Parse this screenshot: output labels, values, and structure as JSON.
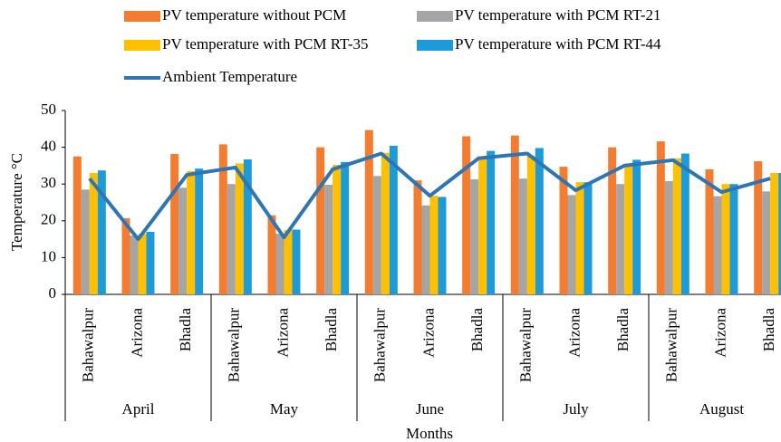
{
  "chart_data": {
    "type": "bar",
    "xlabel": "Months",
    "ylabel": "Temperature °C",
    "groups": [
      "April",
      "May",
      "June",
      "July",
      "August"
    ],
    "categories": [
      "Bahawalpur",
      "Arizona",
      "Bhadla",
      "Bahawalpur",
      "Arizona",
      "Bhadla",
      "Bahawalpur",
      "Arizona",
      "Bhadla",
      "Bahawalpur",
      "Arizona",
      "Bhadla",
      "Bahawalpur",
      "Arizona",
      "Bhadla"
    ],
    "series": [
      {
        "name": "PV temperature without PCM",
        "color": "#f47c30",
        "values": [
          37.5,
          20.7,
          38.2,
          40.8,
          21.5,
          40,
          44.7,
          31,
          43,
          43.2,
          34.7,
          40,
          41.6,
          34,
          36.2
        ]
      },
      {
        "name": "PV temperature with PCM RT-21",
        "color": "#a5a5a5",
        "values": [
          28.5,
          16,
          29,
          30,
          16.5,
          29.8,
          32.2,
          24.2,
          31.3,
          31.5,
          27,
          30,
          30.8,
          26.7,
          28
        ]
      },
      {
        "name": "PV temperature with PCM RT-35",
        "color": "#ffc000",
        "values": [
          33,
          16.5,
          33.5,
          35.6,
          17.5,
          35.2,
          38.5,
          26.8,
          37,
          37.7,
          30.5,
          35.6,
          37,
          30,
          33
        ]
      },
      {
        "name": "PV temperature with PCM RT-44",
        "color": "#1e9bd7",
        "values": [
          33.7,
          17,
          34.2,
          36.7,
          17.6,
          36,
          40.4,
          26.5,
          39,
          39.8,
          30.5,
          36.6,
          38.3,
          30,
          33
        ]
      },
      {
        "name": "Ambient Temperature",
        "color": "#2e75b6",
        "type": "line",
        "values": [
          31.5,
          15,
          32.5,
          34.5,
          15.5,
          34,
          38.3,
          26.8,
          37,
          38.3,
          28.3,
          35,
          36.5,
          27.8,
          31.5
        ]
      }
    ],
    "ylim": [
      0,
      50
    ],
    "yticks": [
      0,
      10,
      20,
      30,
      40,
      50
    ],
    "grid": false
  }
}
